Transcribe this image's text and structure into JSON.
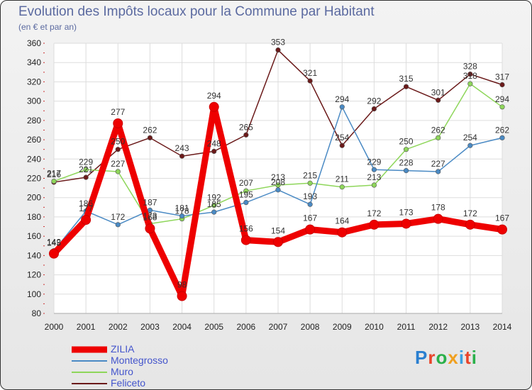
{
  "title": "Evolution des Impôts locaux pour la Commune par Habitant",
  "subtitle": "(en € et par an)",
  "brand": "Proxiti",
  "chart_data": {
    "type": "line",
    "x": [
      "2000",
      "2001",
      "2002",
      "2003",
      "2004",
      "2005",
      "2006",
      "2007",
      "2008",
      "2009",
      "2010",
      "2011",
      "2012",
      "2013",
      "2014"
    ],
    "ylim": [
      80,
      360
    ],
    "yticks": [
      80,
      100,
      120,
      140,
      160,
      180,
      200,
      220,
      240,
      260,
      280,
      300,
      320,
      340,
      360
    ],
    "grid": true,
    "series": [
      {
        "name": "Feliceto",
        "color": "#6b1a1a",
        "values": [
          216,
          221,
          250,
          262,
          243,
          248,
          265,
          353,
          321,
          254,
          292,
          315,
          301,
          328,
          317
        ]
      },
      {
        "name": "Muro",
        "color": "#8ed65a",
        "values": [
          217,
          229,
          227,
          173,
          178,
          192,
          207,
          213,
          215,
          211,
          213,
          250,
          262,
          318,
          294
        ]
      },
      {
        "name": "Montegrosso",
        "color": "#4a8ac4",
        "values": [
          145,
          186,
          172,
          187,
          181,
          185,
          195,
          208,
          193,
          294,
          229,
          228,
          227,
          254,
          262
        ]
      },
      {
        "name": "ZILIA",
        "color": "#ee0000",
        "values": [
          142,
          177,
          277,
          168,
          98,
          294,
          156,
          154,
          167,
          164,
          172,
          173,
          178,
          172,
          167
        ]
      }
    ],
    "legend": [
      "ZILIA",
      "Montegrosso",
      "Muro",
      "Feliceto"
    ]
  }
}
